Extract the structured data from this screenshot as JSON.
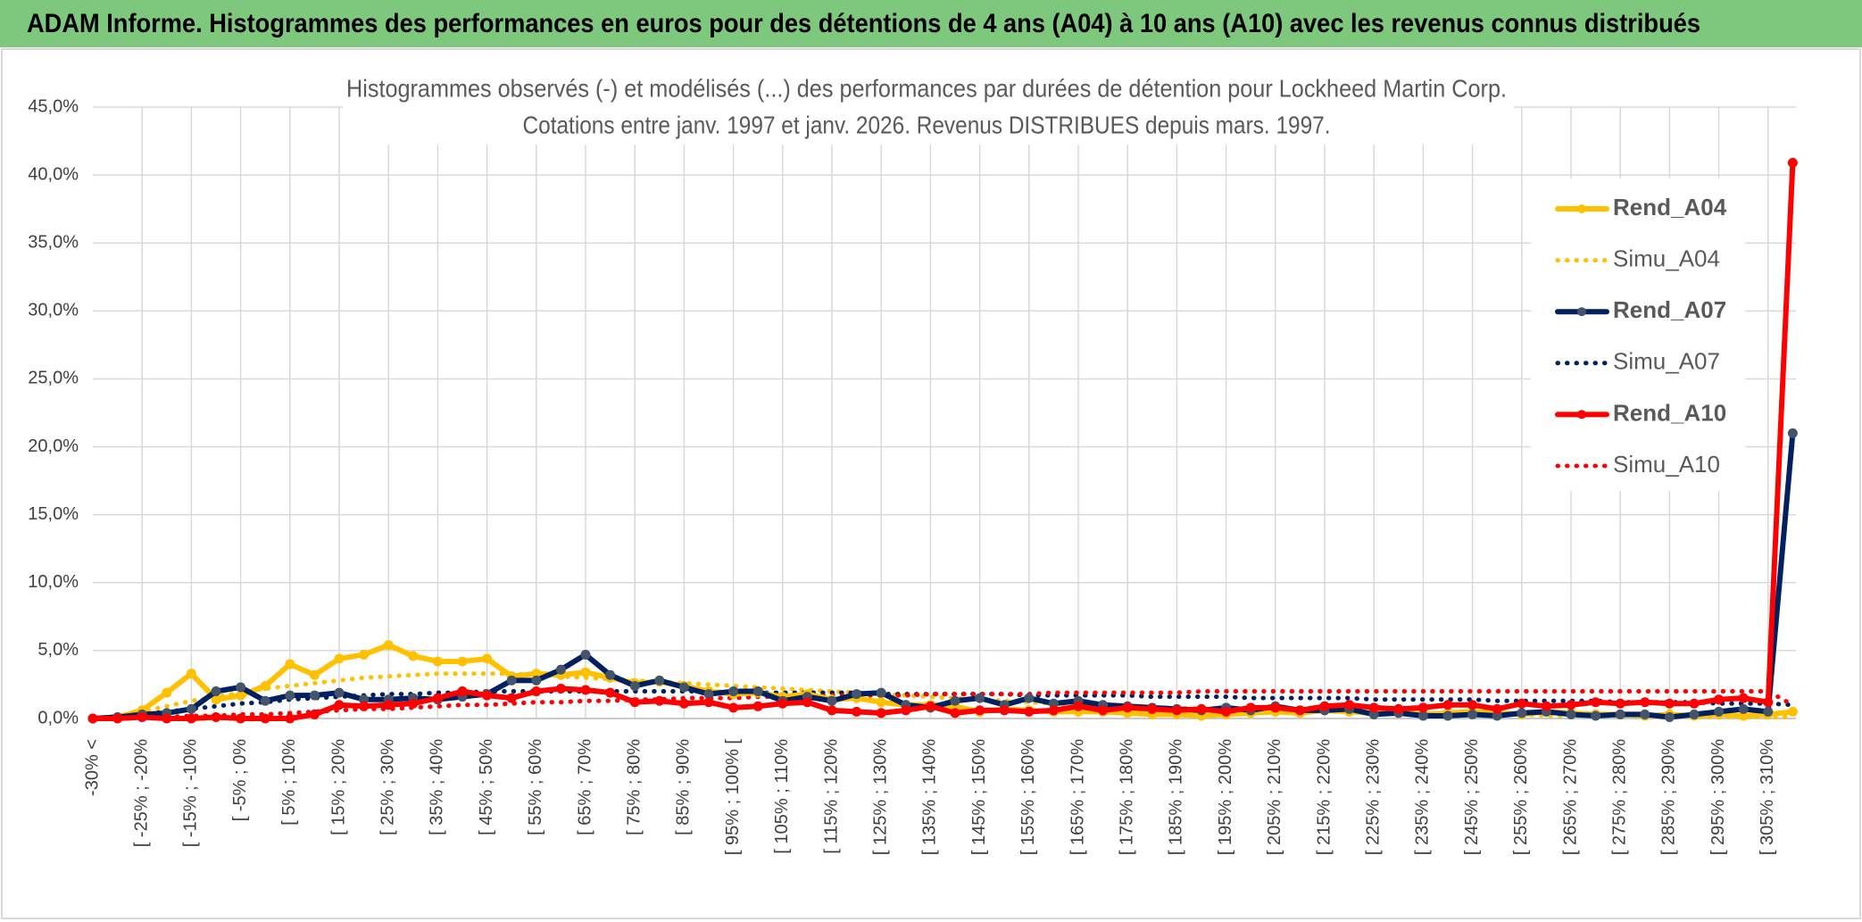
{
  "header": {
    "title": "ADAM Informe. Histogrammes des performances en euros pour des détentions de 4 ans (A04) à 10 ans (A10) avec les revenus connus distribués"
  },
  "chart_data": {
    "type": "line",
    "title": "Histogrammes observés (-) et modélisés (...) des performances par durées de détention pour Lockheed Martin Corp.",
    "subtitle": "Cotations entre janv. 1997 et janv. 2026. Revenus DISTRIBUES depuis mars. 1997.",
    "categories": [
      "-30% <",
      null,
      "[ -25% ; -20%",
      null,
      "[ -15% ; -10%",
      null,
      "[ -5% ; 0%",
      null,
      "[ 5% ; 10%",
      null,
      "[ 15% ; 20%",
      null,
      "[ 25% ; 30%",
      null,
      "[ 35% ; 40%",
      null,
      "[ 45% ; 50%",
      null,
      "[ 55% ; 60%",
      null,
      "[ 65% ; 70%",
      null,
      "[ 75% ; 80%",
      null,
      "[ 85% ; 90%",
      null,
      "[ 95% ; 100% [",
      null,
      "[ 105% ; 110%",
      null,
      "[ 115% ; 120%",
      null,
      "[ 125% ; 130%",
      null,
      "[ 135% ; 140%",
      null,
      "[ 145% ; 150%",
      null,
      "[ 155% ; 160%",
      null,
      "[ 165% ; 170%",
      null,
      "[ 175% ; 180%",
      null,
      "[ 185% ; 190%",
      null,
      "[ 195% ; 200%",
      null,
      "[ 205% ; 210%",
      null,
      "[ 215% ; 220%",
      null,
      "[ 225% ; 230%",
      null,
      "[ 235% ; 240%",
      null,
      "[ 245% ; 250%",
      null,
      "[ 255% ; 260%",
      null,
      "[ 265% ; 270%",
      null,
      "[ 275% ; 280%",
      null,
      "[ 285% ; 290%",
      null,
      "[ 295% ; 300%",
      null,
      "[ 305% ; 310%",
      null
    ],
    "series": [
      {
        "name": "Rend_A04",
        "color": "#ffc000",
        "style": "solid",
        "values": [
          0,
          0.1,
          0.6,
          1.9,
          3.3,
          1.4,
          1.7,
          2.4,
          4.0,
          3.2,
          4.4,
          4.7,
          5.4,
          4.6,
          4.2,
          4.2,
          4.4,
          3.1,
          3.3,
          3.2,
          3.4,
          3.0,
          2.6,
          2.7,
          2.4,
          2.0,
          1.8,
          1.9,
          1.6,
          1.8,
          1.4,
          1.5,
          1.2,
          1.0,
          1.0,
          0.9,
          0.5,
          0.7,
          0.6,
          0.5,
          0.5,
          0.5,
          0.4,
          0.3,
          0.3,
          0.2,
          0.3,
          0.4,
          0.5,
          0.4,
          0.6,
          0.5,
          0.4,
          0.5,
          0.3,
          0.4,
          0.5,
          0.4,
          0.3,
          0.5,
          0.4,
          0.3,
          0.3,
          0.2,
          0.3,
          0.2,
          0.3,
          0.2,
          0.3,
          0.5
        ]
      },
      {
        "name": "Simu_A04",
        "color": "#ffc000",
        "style": "dotted",
        "values": [
          0,
          0.2,
          0.5,
          0.9,
          1.3,
          1.6,
          1.9,
          2.2,
          2.4,
          2.6,
          2.8,
          3.0,
          3.1,
          3.2,
          3.3,
          3.3,
          3.3,
          3.3,
          3.2,
          3.1,
          3.0,
          2.9,
          2.8,
          2.7,
          2.6,
          2.5,
          2.4,
          2.3,
          2.2,
          2.1,
          2.0,
          1.9,
          1.8,
          1.7,
          1.6,
          1.5,
          1.4,
          1.3,
          1.2,
          1.1,
          1.0,
          1.0,
          0.9,
          0.8,
          0.8,
          0.7,
          0.7,
          0.6,
          0.6,
          0.5,
          0.5,
          0.5,
          0.4,
          0.4,
          0.4,
          0.3,
          0.3,
          0.3,
          0.3,
          0.2,
          0.2,
          0.2,
          0.2,
          0.2,
          0.2,
          0.1,
          0.1,
          0.1,
          0.1,
          0.1
        ]
      },
      {
        "name": "Rend_A07",
        "color": "#002060",
        "style": "solid",
        "values": [
          0,
          0.1,
          0.3,
          0.4,
          0.7,
          2.0,
          2.3,
          1.3,
          1.7,
          1.7,
          1.9,
          1.4,
          1.4,
          1.5,
          1.4,
          1.6,
          1.8,
          2.8,
          2.8,
          3.6,
          4.7,
          3.2,
          2.4,
          2.8,
          2.3,
          1.8,
          2.0,
          2.0,
          1.3,
          1.6,
          1.3,
          1.8,
          1.9,
          1.0,
          0.8,
          1.3,
          1.5,
          1.0,
          1.5,
          1.1,
          1.3,
          1.0,
          0.9,
          0.8,
          0.7,
          0.6,
          0.8,
          0.6,
          0.9,
          0.6,
          0.6,
          0.7,
          0.3,
          0.4,
          0.2,
          0.2,
          0.3,
          0.2,
          0.4,
          0.5,
          0.3,
          0.2,
          0.3,
          0.3,
          0.1,
          0.3,
          0.5,
          0.7,
          0.5,
          21.0
        ]
      },
      {
        "name": "Simu_A07",
        "color": "#002060",
        "style": "dotted",
        "values": [
          0,
          0.1,
          0.3,
          0.5,
          0.7,
          0.9,
          1.1,
          1.2,
          1.4,
          1.5,
          1.6,
          1.7,
          1.8,
          1.8,
          1.9,
          1.9,
          2.0,
          2.0,
          2.0,
          2.0,
          2.0,
          2.0,
          2.0,
          2.0,
          2.0,
          2.0,
          1.9,
          1.9,
          1.9,
          1.9,
          1.9,
          1.9,
          1.8,
          1.8,
          1.8,
          1.8,
          1.8,
          1.8,
          1.7,
          1.7,
          1.7,
          1.7,
          1.7,
          1.6,
          1.6,
          1.6,
          1.6,
          1.5,
          1.5,
          1.5,
          1.5,
          1.5,
          1.4,
          1.4,
          1.4,
          1.4,
          1.4,
          1.3,
          1.3,
          1.3,
          1.3,
          1.3,
          1.2,
          1.2,
          1.2,
          1.2,
          1.1,
          1.1,
          1.1,
          1.0
        ]
      },
      {
        "name": "Rend_A10",
        "color": "#ff0000",
        "style": "solid",
        "values": [
          0,
          0,
          0.1,
          0,
          0,
          0.1,
          0,
          0,
          0,
          0.3,
          1.0,
          0.9,
          1.0,
          1.1,
          1.5,
          2.0,
          1.7,
          1.5,
          2.0,
          2.2,
          2.1,
          1.9,
          1.2,
          1.3,
          1.1,
          1.2,
          0.8,
          0.9,
          1.1,
          1.2,
          0.6,
          0.5,
          0.4,
          0.6,
          0.9,
          0.4,
          0.6,
          0.6,
          0.5,
          0.6,
          0.9,
          0.6,
          0.8,
          0.7,
          0.6,
          0.7,
          0.5,
          0.8,
          0.8,
          0.6,
          0.9,
          1.0,
          0.8,
          0.7,
          0.8,
          1.0,
          1.0,
          0.7,
          1.1,
          0.9,
          1.0,
          1.2,
          1.1,
          1.2,
          1.1,
          1.1,
          1.4,
          1.5,
          1.2,
          40.9
        ]
      },
      {
        "name": "Simu_A10",
        "color": "#ff0000",
        "style": "dotted",
        "values": [
          0,
          0,
          0.1,
          0.1,
          0.2,
          0.2,
          0.3,
          0.3,
          0.4,
          0.5,
          0.6,
          0.7,
          0.7,
          0.8,
          0.9,
          1.0,
          1.0,
          1.1,
          1.2,
          1.2,
          1.3,
          1.3,
          1.4,
          1.4,
          1.5,
          1.5,
          1.5,
          1.6,
          1.6,
          1.6,
          1.7,
          1.7,
          1.7,
          1.7,
          1.8,
          1.8,
          1.8,
          1.8,
          1.8,
          1.9,
          1.9,
          1.9,
          1.9,
          1.9,
          1.9,
          2.0,
          2.0,
          2.0,
          2.0,
          2.0,
          2.0,
          2.0,
          2.0,
          2.0,
          2.0,
          2.0,
          2.0,
          2.0,
          2.0,
          2.0,
          2.0,
          2.0,
          2.0,
          2.0,
          2.0,
          2.0,
          2.0,
          2.0,
          2.0,
          1.0
        ]
      }
    ],
    "ylim": [
      0,
      45
    ],
    "yticks": [
      {
        "value": 0,
        "label": "0,0%"
      },
      {
        "value": 5,
        "label": "5,0%"
      },
      {
        "value": 10,
        "label": "10,0%"
      },
      {
        "value": 15,
        "label": "15,0%"
      },
      {
        "value": 20,
        "label": "20,0%"
      },
      {
        "value": 25,
        "label": "25,0%"
      },
      {
        "value": 30,
        "label": "30,0%"
      },
      {
        "value": 35,
        "label": "35,0%"
      },
      {
        "value": 40,
        "label": "40,0%"
      },
      {
        "value": 45,
        "label": "45,0%"
      }
    ],
    "grid": true,
    "markers": true,
    "legend": "right"
  }
}
